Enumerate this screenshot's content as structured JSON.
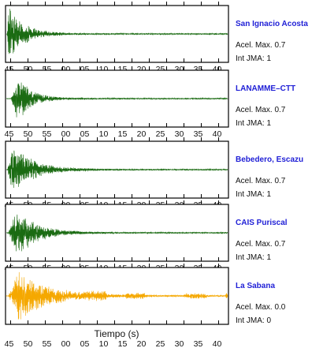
{
  "chart_data": {
    "type": "line",
    "xlabel": "Tiempo (s)",
    "x_tick_labels": [
      "45",
      "50",
      "55",
      "00",
      "05",
      "10",
      "15",
      "20",
      "25",
      "30",
      "35",
      "40"
    ],
    "x_range_s": [
      44,
      101.5
    ],
    "grid": false,
    "panels": [
      {
        "station": "San Ignacio Acosta",
        "acel_max": "Acel. Max. 0.7",
        "int_jma": "Int JMA: 1",
        "color": "#1a6b12",
        "signal": {
          "onset_s": 44.2,
          "peak_s": 44.6,
          "peak_amplitude": 0.95,
          "decay_s": 4.0
        }
      },
      {
        "station": "LANAMME–CTT",
        "acel_max": "Acel. Max. 0.7",
        "int_jma": "Int JMA: 1",
        "color": "#1a6b12",
        "signal": {
          "onset_s": 45.2,
          "peak_s": 47.0,
          "peak_amplitude": 0.85,
          "decay_s": 3.5
        }
      },
      {
        "station": "Bebedero, Escazu",
        "acel_max": "Acel. Max. 0.7",
        "int_jma": "Int JMA: 1",
        "color": "#1a6b12",
        "signal": {
          "onset_s": 44.3,
          "peak_s": 45.5,
          "peak_amplitude": 0.9,
          "decay_s": 5.5
        }
      },
      {
        "station": "CAIS Puriscal",
        "acel_max": "Acel. Max. 0.7",
        "int_jma": "Int JMA: 1",
        "color": "#1a6b12",
        "signal": {
          "onset_s": 44.5,
          "peak_s": 46.8,
          "peak_amplitude": 0.9,
          "decay_s": 5.0
        }
      },
      {
        "station": "La Sabana",
        "acel_max": "Acel. Max. 0.0",
        "int_jma": "Int JMA: 0",
        "color": "#f5a800",
        "signal": {
          "onset_s": 44.5,
          "peak_s": 47.0,
          "peak_amplitude": 0.9,
          "decay_s": 8.0
        }
      }
    ]
  }
}
